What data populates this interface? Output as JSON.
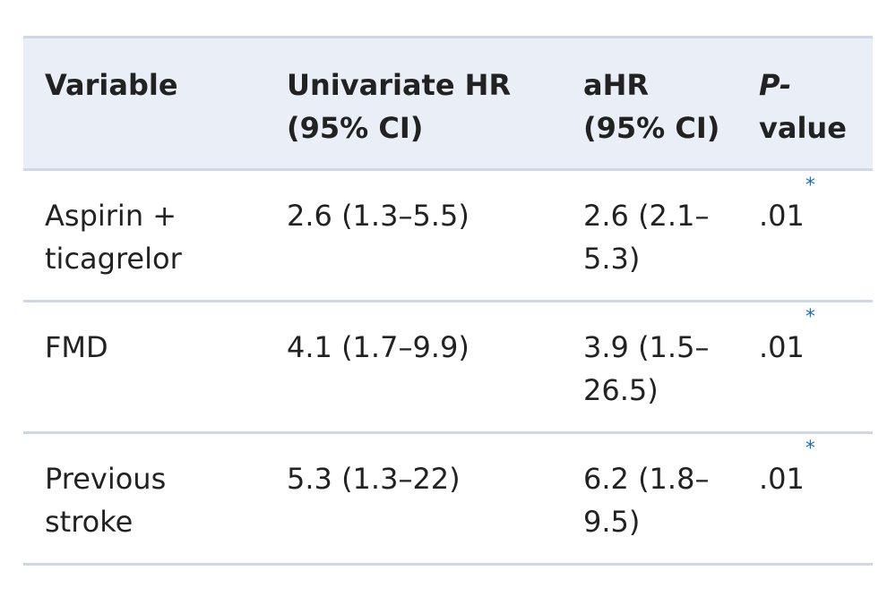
{
  "table": {
    "headers": {
      "variable": "Variable",
      "univariate_line1": "Univariate HR",
      "univariate_line2": "(95% CI)",
      "ahr_line1": "aHR",
      "ahr_line2": "(95% CI)",
      "p_line1": "P-",
      "p_line2": "value"
    },
    "rows": [
      {
        "variable_line1": "Aspirin +",
        "variable_line2": "ticagrelor",
        "univariate_hr": "2.6 (1.3–5.5)",
        "ahr_line1": "2.6 (2.1–",
        "ahr_line2": "5.3)",
        "p_value": ".01",
        "footnote": "*"
      },
      {
        "variable_line1": "FMD",
        "variable_line2": "",
        "univariate_hr": "4.1 (1.7–9.9)",
        "ahr_line1": "3.9 (1.5–",
        "ahr_line2": "26.5)",
        "p_value": ".01",
        "footnote": "*"
      },
      {
        "variable_line1": "Previous",
        "variable_line2": "stroke",
        "univariate_hr": "5.3 (1.3–22)",
        "ahr_line1": "6.2 (1.8–",
        "ahr_line2": "9.5)",
        "p_value": ".01",
        "footnote": "*"
      }
    ]
  },
  "colors": {
    "header_background": "#e9eef7",
    "rule": "#cfd7e6",
    "text": "#222222",
    "footnote_link": "#1f6fb5"
  }
}
